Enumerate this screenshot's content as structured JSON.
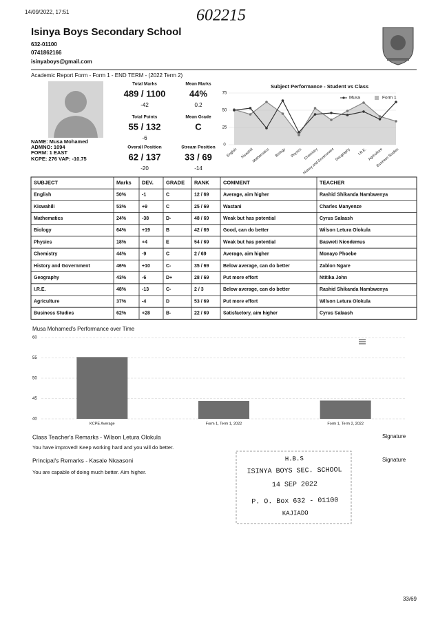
{
  "header": {
    "timestamp": "14/09/2022, 17:51",
    "handwritten_number": "602215",
    "school_name": "Isinya Boys Secondary School",
    "address": "632-01100",
    "phone": "0741862166",
    "email": "isinyaboys@gmail.com"
  },
  "report_title": "Academic Report Form - Form 1 - END TERM - (2022 Term 2)",
  "student": {
    "name": "NAME: Musa Mohamed",
    "admno": "ADMNO: 1094",
    "form": "FORM: 1 EAST",
    "kcpe": "KCPE: 276 VAP: -10.75"
  },
  "summary": [
    {
      "label": "Total Marks",
      "value": "489 / 1100",
      "deviation": "-42"
    },
    {
      "label": "Mean Marks",
      "value": "44%",
      "deviation": "0.2"
    },
    {
      "label": "Total Points",
      "value": "55 / 132",
      "deviation": "-6"
    },
    {
      "label": "Mean Grade",
      "value": "C"
    },
    {
      "label": "Overall Position",
      "value": "62 / 137",
      "deviation": "-20"
    },
    {
      "label": "Stream Position",
      "value": "33 / 69",
      "deviation": "-14"
    }
  ],
  "subject_chart": {
    "type": "line",
    "title": "Subject Performance - Student vs Class",
    "categories": [
      "English",
      "Kiswahili",
      "Mathematics",
      "Biology",
      "Physics",
      "Chemistry",
      "History and Government",
      "Geography",
      "I.R.E.",
      "Agriculture",
      "Business Studies"
    ],
    "series": [
      {
        "name": "Musa",
        "color": "#333333",
        "style": "line",
        "values": [
          50,
          53,
          24,
          64,
          18,
          44,
          46,
          43,
          48,
          37,
          62
        ]
      },
      {
        "name": "Form 1",
        "color": "#b8b8b8",
        "style": "area",
        "values": [
          51,
          44,
          62,
          45,
          14,
          53,
          36,
          49,
          61,
          41,
          34
        ]
      }
    ],
    "ylim": [
      0,
      75
    ],
    "yticks": [
      0,
      25,
      50,
      75
    ],
    "grid": true
  },
  "table": {
    "header": [
      "SUBJECT",
      "Marks",
      "DEV.",
      "GRADE",
      "RANK",
      "COMMENT",
      "TEACHER"
    ],
    "rows": [
      [
        "English",
        "50%",
        "-1",
        "C",
        "12 / 69",
        "Average, aim higher",
        "Rashid Shikanda Nambwenya"
      ],
      [
        "Kiswahili",
        "53%",
        "+9",
        "C",
        "25 / 69",
        "Wastani",
        "Charles Manyenze"
      ],
      [
        "Mathematics",
        "24%",
        "-38",
        "D-",
        "48 / 69",
        "Weak but has potential",
        "Cyrus Salaash"
      ],
      [
        "Biology",
        "64%",
        "+19",
        "B",
        "42 / 69",
        "Good, can do better",
        "Wilson Letura Olokula"
      ],
      [
        "Physics",
        "18%",
        "+4",
        "E",
        "54 / 69",
        "Weak but has potential",
        "Basweti Nicodemus"
      ],
      [
        "Chemistry",
        "44%",
        "-9",
        "C",
        "2 / 69",
        "Average, aim higher",
        "Monayo Phoebe"
      ],
      [
        "History and Government",
        "46%",
        "+10",
        "C-",
        "35 / 69",
        "Below average, can do better",
        "Zablon Ngare"
      ],
      [
        "Geography",
        "43%",
        "-6",
        "D+",
        "28 / 69",
        "Put more effort",
        "Ntitika John"
      ],
      [
        "I.R.E.",
        "48%",
        "-13",
        "C-",
        "2 / 3",
        "Below average, can do better",
        "Rashid Shikanda Nambwenya"
      ],
      [
        "Agriculture",
        "37%",
        "-4",
        "D",
        "53 / 69",
        "Put more effort",
        "Wilson Letura Olokula"
      ],
      [
        "Business Studies",
        "62%",
        "+28",
        "B-",
        "22 / 69",
        "Satisfactory, aim higher",
        "Cyrus Salaash"
      ]
    ]
  },
  "performance_chart": {
    "type": "bar",
    "title": "Musa Mohamed's Performance over Time",
    "categories": [
      "KCPE Average",
      "Form 1, Term 1, 2022",
      "Form 1, Term 2, 2022"
    ],
    "values": [
      55.2,
      44.4,
      44.5
    ],
    "color": "#6e6e6e",
    "ylim": [
      40,
      60
    ],
    "yticks": [
      40,
      45,
      50,
      55,
      60
    ],
    "grid": true
  },
  "remarks": [
    {
      "title": "Class Teacher's Remarks - Wilson Letura Olokula",
      "text": "You have improved! Keep working hard and you will do better.",
      "signature": "Signature"
    },
    {
      "title": "Principal's Remarks - Kasale Nkaasoni",
      "text": "You are capable of doing much better. Aim higher.",
      "signature": "Signature"
    }
  ],
  "stamp": {
    "lines": [
      "H.B.S",
      "ISINYA BOYS SEC. SCHOOL",
      "14 SEP 2022",
      "P. O. Box 632 - 01100",
      "KAJIADO"
    ]
  },
  "page_number": "33/69"
}
